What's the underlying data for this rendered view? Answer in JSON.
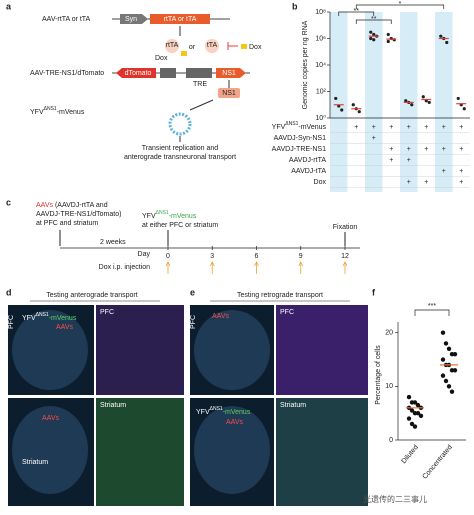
{
  "watermark": "光遗传的二三事儿",
  "panel_a": {
    "label": "a",
    "aav1": "AAV-rtTA or tTA",
    "syn": "Syn",
    "rtta_or_tta": "rtTA or tTA",
    "rtta": "rtTA",
    "or": "or",
    "tta": "tTA",
    "dox": "Dox",
    "dox2": "Dox",
    "aav2": "AAV-TRE-NS1/dTomato",
    "dtomato": "dTomato",
    "tre": "TRE",
    "ns1": "NS1",
    "ns1_protein": "NS1",
    "yfv": {
      "name": "YFV",
      "sup": "ΔNS1",
      "suffix": "-mVenus"
    },
    "outcome": [
      "Transient replication and",
      "anterograde transneuronal transport"
    ]
  },
  "panel_b": {
    "label": "b",
    "chart_data": {
      "type": "strip",
      "y_label": "Genomic copies per ng RNA",
      "log_y": true,
      "ylim": [
        1,
        100000000
      ],
      "yticks": [
        {
          "value": 1,
          "label": "10⁰"
        },
        {
          "value": 100,
          "label": "10²"
        },
        {
          "value": 10000,
          "label": "10⁴"
        },
        {
          "value": 1000000,
          "label": "10⁶"
        },
        {
          "value": 100000000,
          "label": "10⁸"
        }
      ],
      "groups": [
        [
          30,
          8,
          4
        ],
        [
          10,
          5,
          3
        ],
        [
          3000000,
          2000000,
          1500000,
          1000000,
          800000
        ],
        [
          2000000,
          1000000,
          800000,
          600000
        ],
        [
          20,
          15,
          10
        ],
        [
          40,
          20,
          15
        ],
        [
          1500000,
          1000000,
          500000
        ],
        [
          30,
          10,
          5
        ]
      ],
      "means": [
        10,
        5,
        1500000,
        900000,
        15,
        25,
        1000000,
        12
      ],
      "point_color": "#222",
      "mean_color": "#e0433a",
      "shade_color": "#d6ecf7",
      "annotations": [
        "**",
        "**",
        "*"
      ],
      "rows": [
        {
          "name": "YFV",
          "sup": "ΔNS1",
          "suffix": "-mVenus",
          "marks": [
            "",
            "+",
            "+",
            "+",
            "+",
            "+",
            "+",
            "+"
          ]
        },
        {
          "name": "AAVDJ-Syn-NS1",
          "marks": [
            "",
            "",
            "+",
            "",
            "",
            "",
            "",
            ""
          ]
        },
        {
          "name": "AAVDJ-TRE-NS1",
          "marks": [
            "",
            "",
            "",
            "+",
            "+",
            "+",
            "+",
            "+"
          ]
        },
        {
          "name": "AAVDJ-rtTA",
          "marks": [
            "",
            "",
            "",
            "+",
            "+",
            "",
            "",
            ""
          ]
        },
        {
          "name": "AAVDJ-tTA",
          "marks": [
            "",
            "",
            "",
            "",
            "",
            "",
            "+",
            "+"
          ]
        },
        {
          "name": "Dox",
          "marks": [
            "",
            "",
            "",
            "",
            "+",
            "+",
            "",
            "+"
          ]
        }
      ]
    }
  },
  "panel_c": {
    "label": "c",
    "aavs": "AAVs",
    "aavs_desc": " (AAVDJ-rtTA  and",
    "aavs_desc2": "AAVDJ-TRE-NS1/dTomato)",
    "aavs_site": "at PFC and striatum",
    "interval": "2 weeks",
    "virus": {
      "name": "YFV",
      "sup": "ΔNS1",
      "suffix": "-mVenus"
    },
    "virus_site": "at either PFC or striatum",
    "fixation": "Fixation",
    "day_label": "Day",
    "xlim": [
      0,
      12
    ],
    "days": [
      0,
      3,
      6,
      9,
      12
    ],
    "dox": "Dox i.p. injection"
  },
  "panel_d": {
    "label": "d",
    "title": "Testing anterograde transport",
    "pfc": "PFC",
    "pfc_zoom": "PFC",
    "virus": {
      "name": "YFV",
      "sup": "ΔNS1",
      "suffix": "-mVenus"
    },
    "aavs": "AAVs",
    "aavs2": "AAVs",
    "striatum": "Striatum",
    "striatum_zoom": "Striatum"
  },
  "panel_e": {
    "label": "e",
    "title": "Testing retrograde transport",
    "pfc": "PFC",
    "pfc_zoom": "PFC",
    "aavs": "AAVs",
    "virus": {
      "name": "YFV",
      "sup": "ΔNS1",
      "suffix": "-mVenus"
    },
    "aavs2": "AAVs",
    "striatum_zoom": "Striatum"
  },
  "panel_f": {
    "label": "f",
    "chart_data": {
      "type": "strip",
      "y_label": "Percentage of cells",
      "ylim": [
        0,
        22
      ],
      "yticks": [
        0,
        10,
        20
      ],
      "categories": [
        "Diluted",
        "Concentrated"
      ],
      "groups": [
        [
          8,
          7,
          7,
          6.5,
          6,
          6,
          5.5,
          5,
          5,
          4.5,
          4,
          3,
          2.5
        ],
        [
          20,
          18,
          17,
          16,
          16,
          15,
          14,
          14,
          13,
          13,
          12,
          11,
          10,
          9
        ]
      ],
      "means": [
        6,
        14
      ],
      "point_color": "#111",
      "mean_color": "#e8743b",
      "annotation": "***"
    }
  }
}
